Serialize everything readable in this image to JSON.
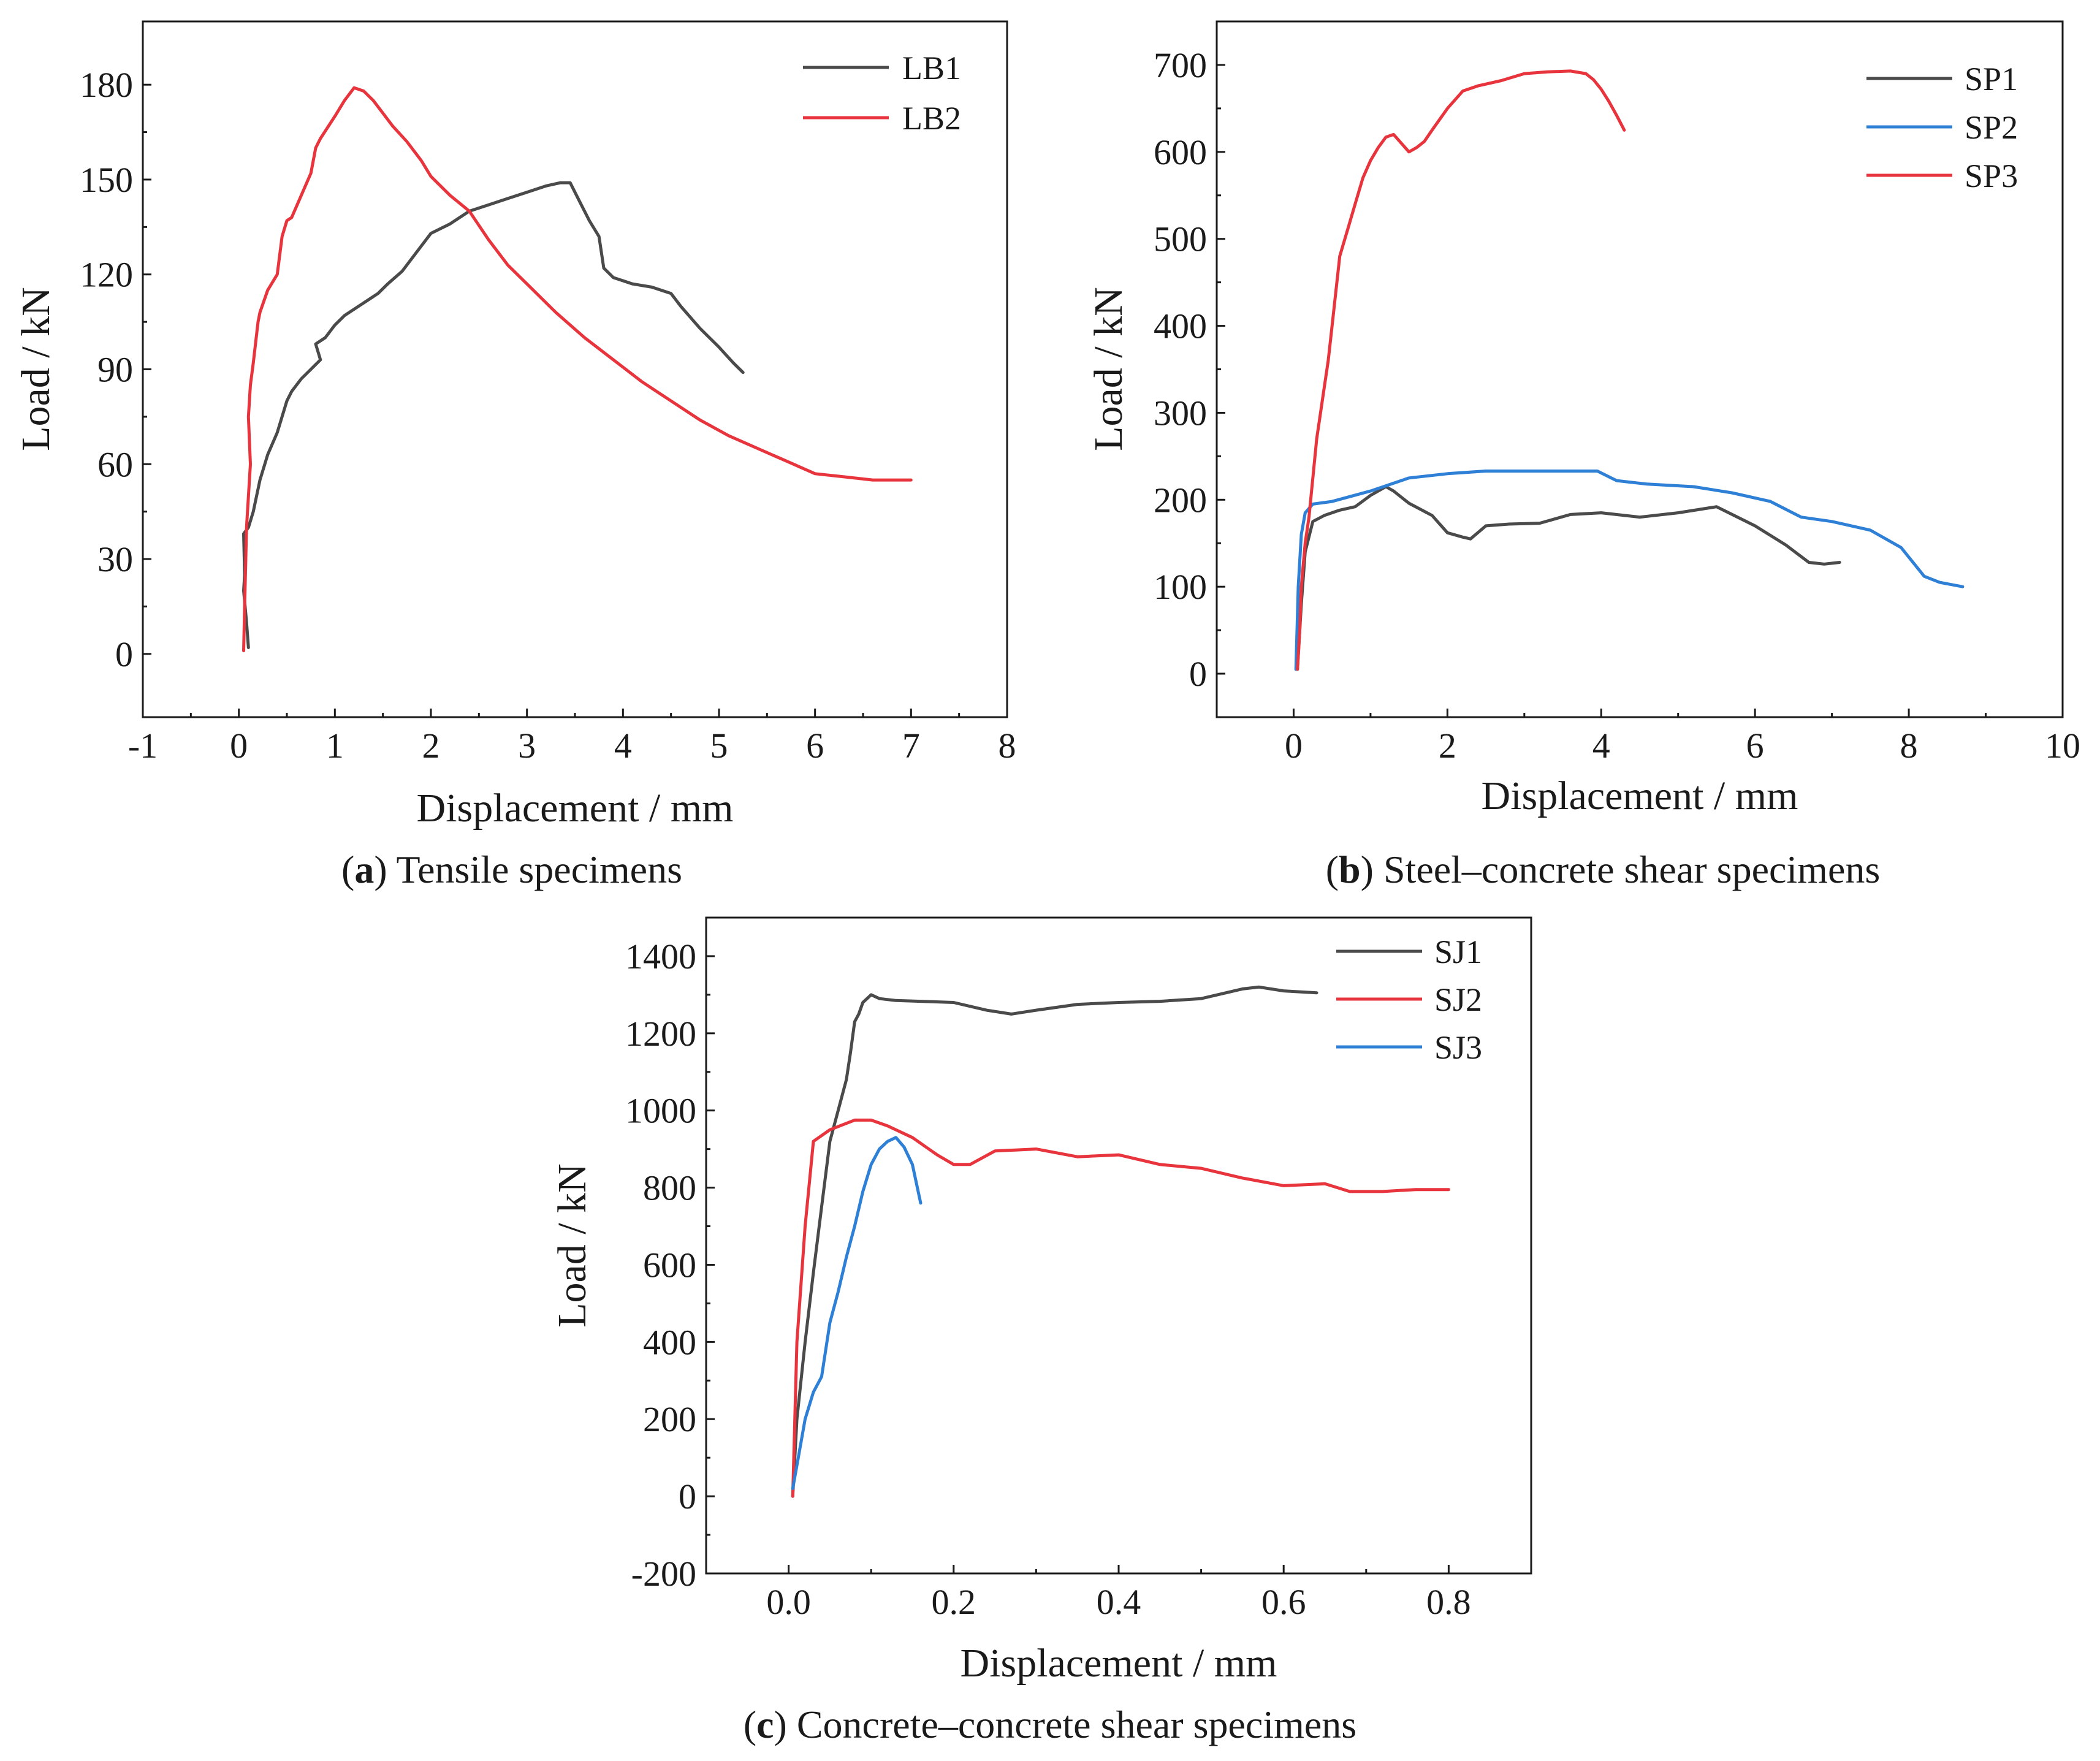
{
  "colors": {
    "black": "#4a4a4a",
    "red": "#e8343c",
    "blue": "#2e7fd6"
  },
  "chart_data": [
    {
      "id": "a",
      "type": "line",
      "caption_letter": "a",
      "caption_text": " Tensile specimens",
      "xlabel": "Displacement / mm",
      "ylabel": "Load / kN",
      "xlim": [
        -1,
        8
      ],
      "ylim": [
        -20,
        200
      ],
      "xticks": [
        -1,
        0,
        1,
        2,
        3,
        4,
        5,
        6,
        7,
        8
      ],
      "xtick_labels": [
        "-1",
        "0",
        "1",
        "2",
        "3",
        "4",
        "5",
        "6",
        "7",
        "8"
      ],
      "yticks": [
        0,
        30,
        60,
        90,
        120,
        150,
        180
      ],
      "ytick_labels": [
        "0",
        "30",
        "60",
        "90",
        "120",
        "150",
        "180"
      ],
      "legend_position": "top-right",
      "series": [
        {
          "name": "LB1",
          "color": "black",
          "x": [
            0.1,
            0.08,
            0.05,
            0.06,
            0.05,
            0.1,
            0.15,
            0.22,
            0.3,
            0.4,
            0.5,
            0.55,
            0.65,
            0.75,
            0.85,
            0.8,
            0.9,
            1.0,
            1.1,
            1.25,
            1.35,
            1.45,
            1.55,
            1.7,
            1.85,
            2.0,
            2.2,
            2.4,
            2.6,
            2.8,
            3.0,
            3.2,
            3.35,
            3.45,
            3.55,
            3.65,
            3.75,
            3.8,
            3.9,
            4.1,
            4.3,
            4.5,
            4.6,
            4.8,
            5.0,
            5.15,
            5.25
          ],
          "y": [
            2,
            10,
            20,
            25,
            38,
            40,
            45,
            55,
            63,
            70,
            80,
            83,
            87,
            90,
            93,
            98,
            100,
            104,
            107,
            110,
            112,
            114,
            117,
            121,
            127,
            133,
            136,
            140,
            142,
            144,
            146,
            148,
            149,
            149,
            143,
            137,
            132,
            122,
            119,
            117,
            116,
            114,
            110,
            103,
            97,
            92,
            89
          ]
        },
        {
          "name": "LB2",
          "color": "red",
          "x": [
            0.05,
            0.06,
            0.08,
            0.12,
            0.1,
            0.12,
            0.15,
            0.2,
            0.22,
            0.3,
            0.4,
            0.45,
            0.5,
            0.55,
            0.65,
            0.75,
            0.8,
            0.85,
            1.0,
            1.1,
            1.2,
            1.3,
            1.4,
            1.5,
            1.6,
            1.75,
            1.9,
            2.0,
            2.2,
            2.4,
            2.6,
            2.8,
            3.0,
            3.3,
            3.6,
            3.9,
            4.2,
            4.5,
            4.8,
            5.1,
            5.4,
            5.7,
            6.0,
            6.3,
            6.6,
            7.0
          ],
          "y": [
            1,
            15,
            40,
            60,
            75,
            85,
            92,
            105,
            108,
            115,
            120,
            132,
            137,
            138,
            145,
            152,
            160,
            163,
            170,
            175,
            179,
            178,
            175,
            171,
            167,
            162,
            156,
            151,
            145,
            140,
            131,
            123,
            117,
            108,
            100,
            93,
            86,
            80,
            74,
            69,
            65,
            61,
            57,
            56,
            55,
            55
          ]
        }
      ]
    },
    {
      "id": "b",
      "type": "line",
      "caption_letter": "b",
      "caption_text": " Steel–concrete shear specimens",
      "xlabel": "Displacement / mm",
      "ylabel": "Load / kN",
      "xlim": [
        -1,
        10
      ],
      "ylim": [
        -50,
        750
      ],
      "xticks": [
        0,
        2,
        4,
        6,
        8,
        10
      ],
      "xtick_labels": [
        "0",
        "2",
        "4",
        "6",
        "8",
        "10"
      ],
      "yticks": [
        0,
        100,
        200,
        300,
        400,
        500,
        600,
        700
      ],
      "ytick_labels": [
        "0",
        "100",
        "200",
        "300",
        "400",
        "500",
        "600",
        "700"
      ],
      "legend_position": "top-right",
      "series": [
        {
          "name": "SP1",
          "color": "black",
          "x": [
            0.05,
            0.1,
            0.15,
            0.25,
            0.4,
            0.6,
            0.8,
            1.0,
            1.2,
            1.3,
            1.5,
            1.8,
            2.0,
            2.2,
            2.3,
            2.5,
            2.8,
            3.2,
            3.6,
            4.0,
            4.5,
            5.0,
            5.5,
            6.0,
            6.4,
            6.7,
            6.9,
            7.1
          ],
          "y": [
            5,
            80,
            140,
            175,
            182,
            188,
            192,
            205,
            215,
            210,
            196,
            182,
            162,
            157,
            155,
            170,
            172,
            173,
            183,
            185,
            180,
            185,
            192,
            170,
            148,
            128,
            126,
            128
          ]
        },
        {
          "name": "SP2",
          "color": "blue",
          "x": [
            0.03,
            0.06,
            0.1,
            0.15,
            0.25,
            0.5,
            1.0,
            1.5,
            2.0,
            2.5,
            3.0,
            3.5,
            3.95,
            4.2,
            4.6,
            5.2,
            5.7,
            6.2,
            6.6,
            7.0,
            7.5,
            7.9,
            8.2,
            8.4,
            8.7
          ],
          "y": [
            5,
            100,
            160,
            185,
            195,
            198,
            210,
            225,
            230,
            233,
            233,
            233,
            233,
            222,
            218,
            215,
            208,
            198,
            180,
            175,
            165,
            145,
            112,
            105,
            100
          ]
        },
        {
          "name": "SP3",
          "color": "red",
          "x": [
            0.05,
            0.08,
            0.1,
            0.15,
            0.2,
            0.3,
            0.4,
            0.45,
            0.5,
            0.6,
            0.7,
            0.8,
            0.9,
            1.0,
            1.1,
            1.2,
            1.3,
            1.4,
            1.5,
            1.6,
            1.7,
            1.8,
            2.0,
            2.2,
            2.4,
            2.7,
            3.0,
            3.3,
            3.6,
            3.8,
            3.9,
            4.0,
            4.1,
            4.2,
            4.3
          ],
          "y": [
            5,
            50,
            100,
            150,
            180,
            270,
            330,
            360,
            400,
            480,
            510,
            540,
            570,
            590,
            605,
            617,
            620,
            610,
            600,
            605,
            612,
            625,
            650,
            670,
            676,
            682,
            690,
            692,
            693,
            690,
            683,
            672,
            658,
            642,
            625
          ]
        }
      ]
    },
    {
      "id": "c",
      "type": "line",
      "caption_letter": "c",
      "caption_text": " Concrete–concrete shear specimens",
      "xlabel": "Displacement / mm",
      "ylabel": "Load / kN",
      "xlim": [
        -0.1,
        0.9
      ],
      "ylim": [
        -200,
        1500
      ],
      "xticks": [
        0.0,
        0.2,
        0.4,
        0.6,
        0.8
      ],
      "xtick_labels": [
        "0.0",
        "0.2",
        "0.4",
        "0.6",
        "0.8"
      ],
      "yticks": [
        -200,
        0,
        200,
        400,
        600,
        800,
        1000,
        1200,
        1400
      ],
      "ytick_labels": [
        "-200",
        "0",
        "200",
        "400",
        "600",
        "800",
        "1000",
        "1200",
        "1400"
      ],
      "legend_position": "top-right",
      "series": [
        {
          "name": "SJ1",
          "color": "black",
          "x": [
            0.005,
            0.01,
            0.02,
            0.03,
            0.04,
            0.05,
            0.06,
            0.07,
            0.075,
            0.08,
            0.085,
            0.09,
            0.1,
            0.11,
            0.13,
            0.16,
            0.2,
            0.24,
            0.27,
            0.3,
            0.35,
            0.4,
            0.45,
            0.5,
            0.55,
            0.57,
            0.6,
            0.64
          ],
          "y": [
            0,
            200,
            400,
            580,
            750,
            920,
            1000,
            1080,
            1150,
            1230,
            1250,
            1280,
            1300,
            1290,
            1285,
            1283,
            1280,
            1260,
            1250,
            1260,
            1275,
            1280,
            1283,
            1290,
            1315,
            1320,
            1310,
            1305
          ]
        },
        {
          "name": "SJ2",
          "color": "red",
          "x": [
            0.005,
            0.01,
            0.02,
            0.03,
            0.05,
            0.08,
            0.1,
            0.12,
            0.15,
            0.18,
            0.2,
            0.22,
            0.25,
            0.3,
            0.35,
            0.4,
            0.45,
            0.5,
            0.55,
            0.6,
            0.65,
            0.68,
            0.72,
            0.76,
            0.8
          ],
          "y": [
            0,
            400,
            700,
            920,
            950,
            975,
            975,
            960,
            930,
            885,
            860,
            860,
            895,
            900,
            880,
            885,
            860,
            850,
            825,
            805,
            810,
            790,
            790,
            795,
            795
          ]
        },
        {
          "name": "SJ3",
          "color": "blue",
          "x": [
            0.005,
            0.01,
            0.02,
            0.03,
            0.04,
            0.05,
            0.06,
            0.07,
            0.08,
            0.09,
            0.1,
            0.11,
            0.12,
            0.13,
            0.14,
            0.15,
            0.16
          ],
          "y": [
            20,
            80,
            200,
            270,
            310,
            450,
            530,
            620,
            700,
            790,
            860,
            900,
            920,
            930,
            905,
            860,
            760
          ]
        }
      ]
    }
  ]
}
